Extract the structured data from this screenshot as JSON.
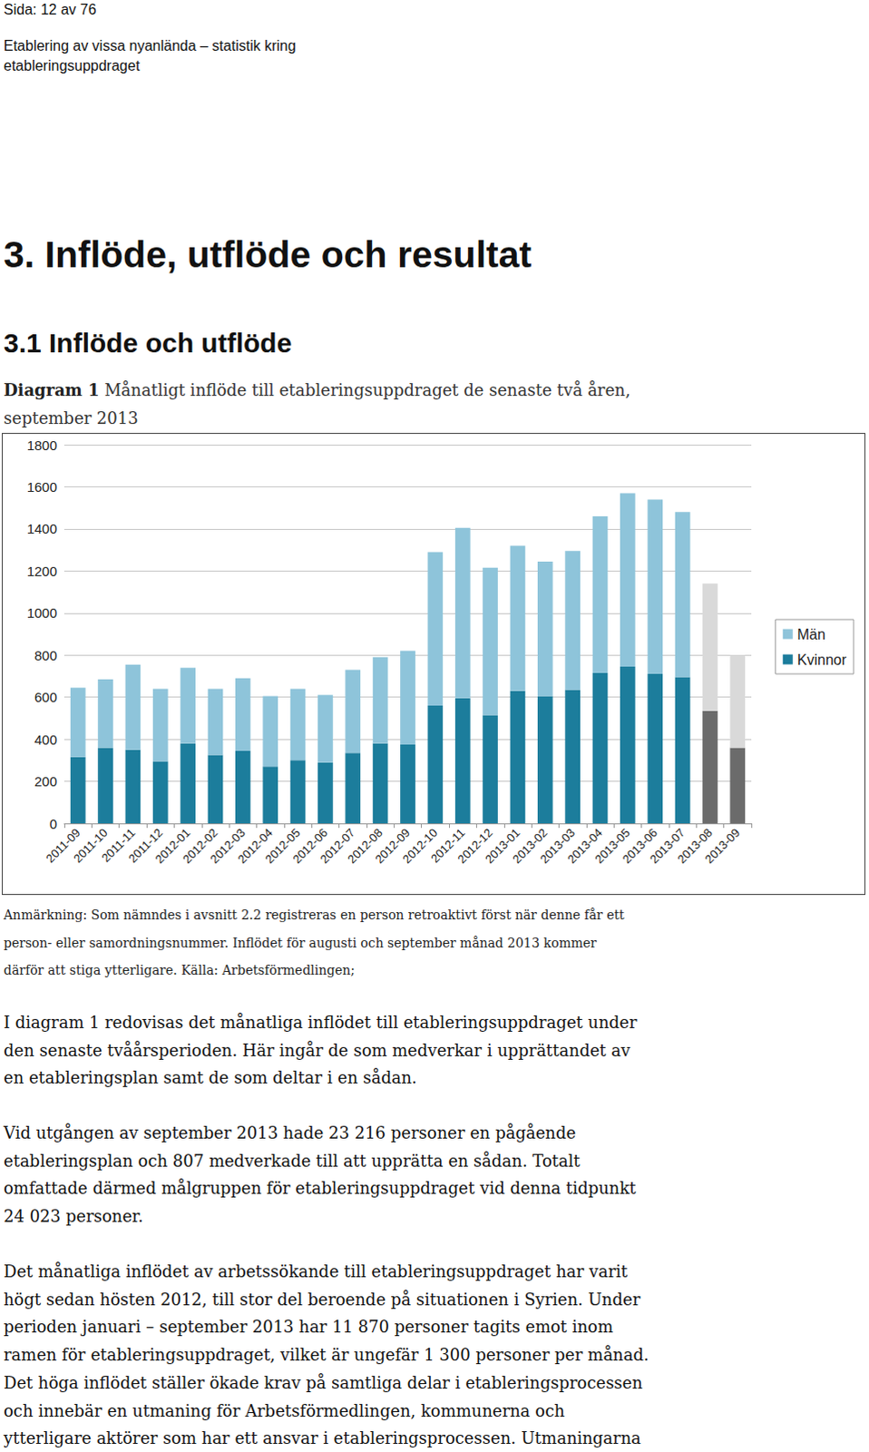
{
  "header": {
    "page": "Sida: 12 av 76",
    "lines": [
      "Etablering av vissa nyanlända – statistik kring",
      "etableringsuppdraget"
    ]
  },
  "headings": [
    "3. Inflöde, utflöde och resultat",
    "3.1 Inflöde och utflöde"
  ],
  "caption": {
    "label": "Diagram 1",
    "lines": [
      "Månatligt inflöde till etableringsuppdraget de senaste två åren,",
      "september 2013"
    ]
  },
  "chart_data": {
    "type": "bar",
    "stacked": true,
    "grid": true,
    "legend": "right",
    "categories": [
      "2011-09",
      "2011-10",
      "2011-11",
      "2011-12",
      "2012-01",
      "2012-02",
      "2012-03",
      "2012-04",
      "2012-05",
      "2012-06",
      "2012-07",
      "2012-08",
      "2012-09",
      "2012-10",
      "2012-11",
      "2012-12",
      "2013-01",
      "2013-02",
      "2013-03",
      "2013-04",
      "2013-05",
      "2013-06",
      "2013-07",
      "2013-08",
      "2013-09"
    ],
    "series": [
      {
        "name": "Kvinnor",
        "color": "#1c7d9c",
        "colors": [
          "#1c7d9c",
          "#1c7d9c",
          "#1c7d9c",
          "#1c7d9c",
          "#1c7d9c",
          "#1c7d9c",
          "#1c7d9c",
          "#1c7d9c",
          "#1c7d9c",
          "#1c7d9c",
          "#1c7d9c",
          "#1c7d9c",
          "#1c7d9c",
          "#1c7d9c",
          "#1c7d9c",
          "#1c7d9c",
          "#1c7d9c",
          "#1c7d9c",
          "#1c7d9c",
          "#1c7d9c",
          "#1c7d9c",
          "#1c7d9c",
          "#1c7d9c",
          "#6b6b6b",
          "#6b6b6b"
        ],
        "values": [
          315,
          360,
          350,
          295,
          380,
          325,
          345,
          270,
          300,
          290,
          335,
          380,
          375,
          560,
          595,
          515,
          630,
          605,
          635,
          715,
          745,
          710,
          695,
          535,
          360
        ]
      },
      {
        "name": "Män",
        "color": "#8ec4da",
        "colors": [
          "#8ec4da",
          "#8ec4da",
          "#8ec4da",
          "#8ec4da",
          "#8ec4da",
          "#8ec4da",
          "#8ec4da",
          "#8ec4da",
          "#8ec4da",
          "#8ec4da",
          "#8ec4da",
          "#8ec4da",
          "#8ec4da",
          "#8ec4da",
          "#8ec4da",
          "#8ec4da",
          "#8ec4da",
          "#8ec4da",
          "#8ec4da",
          "#8ec4da",
          "#8ec4da",
          "#8ec4da",
          "#8ec4da",
          "#d9d9d9",
          "#d9d9d9"
        ],
        "values": [
          330,
          325,
          405,
          345,
          360,
          315,
          345,
          335,
          340,
          320,
          395,
          410,
          445,
          730,
          810,
          700,
          690,
          640,
          660,
          745,
          825,
          830,
          785,
          605,
          440
        ]
      }
    ],
    "ylim": [
      0,
      1800
    ],
    "yticks": [
      0,
      200,
      400,
      600,
      800,
      1000,
      1200,
      1400,
      1600,
      1800
    ]
  },
  "note_lines": [
    "Anmärkning: Som nämndes i avsnitt 2.2 registreras en person retroaktivt först när denne får ett",
    "person- eller samordningsnummer. Inflödet för augusti och september månad 2013 kommer",
    "därför att stiga ytterligare. Källa: Arbetsförmedlingen;"
  ],
  "paragraphs": [
    [
      "I diagram 1 redovisas det månatliga inflödet till etableringsuppdraget under",
      "den senaste tvåårsperioden. Här ingår de som medverkar i upprättandet av",
      "en etableringsplan samt de som deltar i en sådan."
    ],
    [
      "Vid utgången av september 2013 hade 23 216 personer en pågående",
      "etableringsplan och 807 medverkade till att upprätta en sådan. Totalt",
      "omfattade därmed målgruppen för etableringsuppdraget vid denna tidpunkt",
      "24 023 personer."
    ],
    [
      "Det månatliga inflödet av arbetssökande till etableringsuppdraget har varit",
      "högt sedan hösten 2012, till stor del beroende på situationen i Syrien. Under",
      "perioden januari – september 2013 har 11 870 personer tagits emot inom",
      "ramen för etableringsuppdraget, vilket är ungefär 1 300 personer per månad.",
      "Det höga inflödet ställer ökade krav på samtliga delar i etableringsprocessen",
      "och innebär en utmaning för Arbetsförmedlingen, kommunerna och",
      "ytterligare aktörer som har ett ansvar i etableringsprocessen. Utmaningarna"
    ]
  ]
}
